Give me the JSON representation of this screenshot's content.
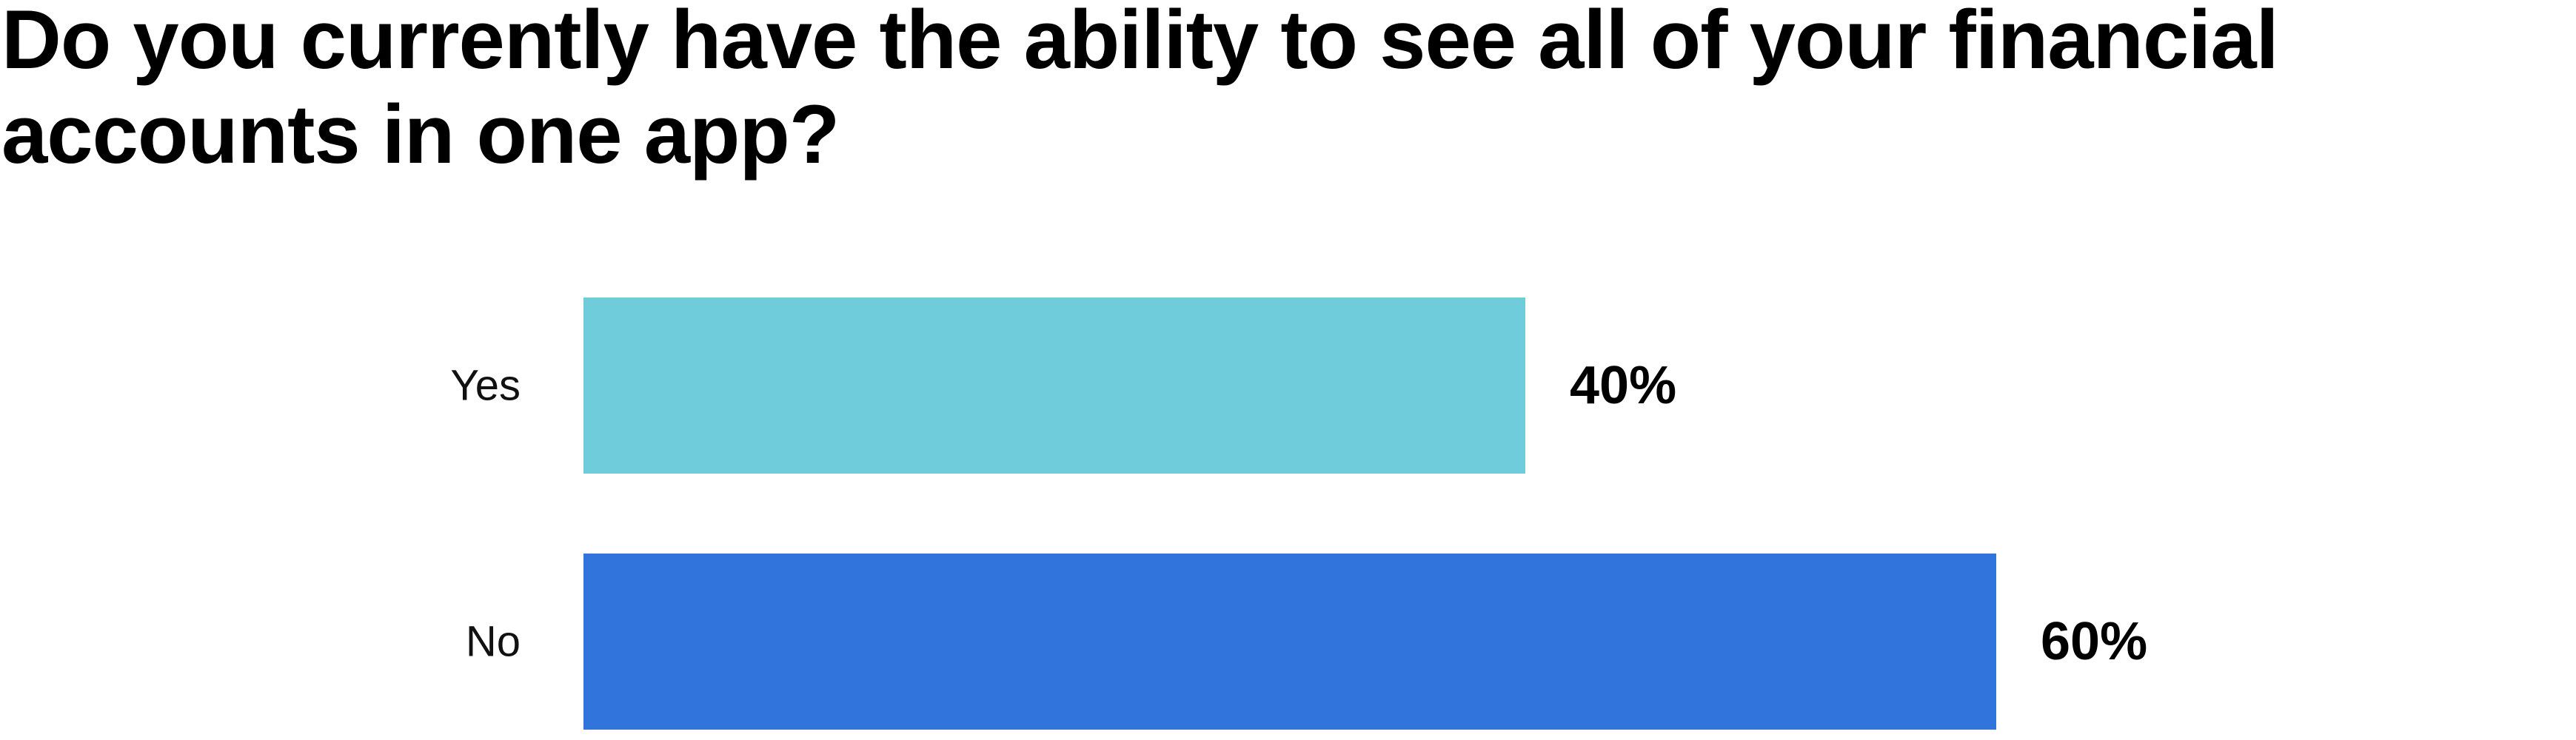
{
  "chart_data": {
    "type": "bar",
    "orientation": "horizontal",
    "title": "Do you currently have the ability to see all of your financial accounts in one app?",
    "categories": [
      "Yes",
      "No"
    ],
    "values": [
      40,
      60
    ],
    "value_labels": [
      "40%",
      "60%"
    ],
    "colors": [
      "#6ECCDB",
      "#3174DB"
    ],
    "xlim": [
      0,
      60
    ],
    "grid": false,
    "legend": "none"
  }
}
